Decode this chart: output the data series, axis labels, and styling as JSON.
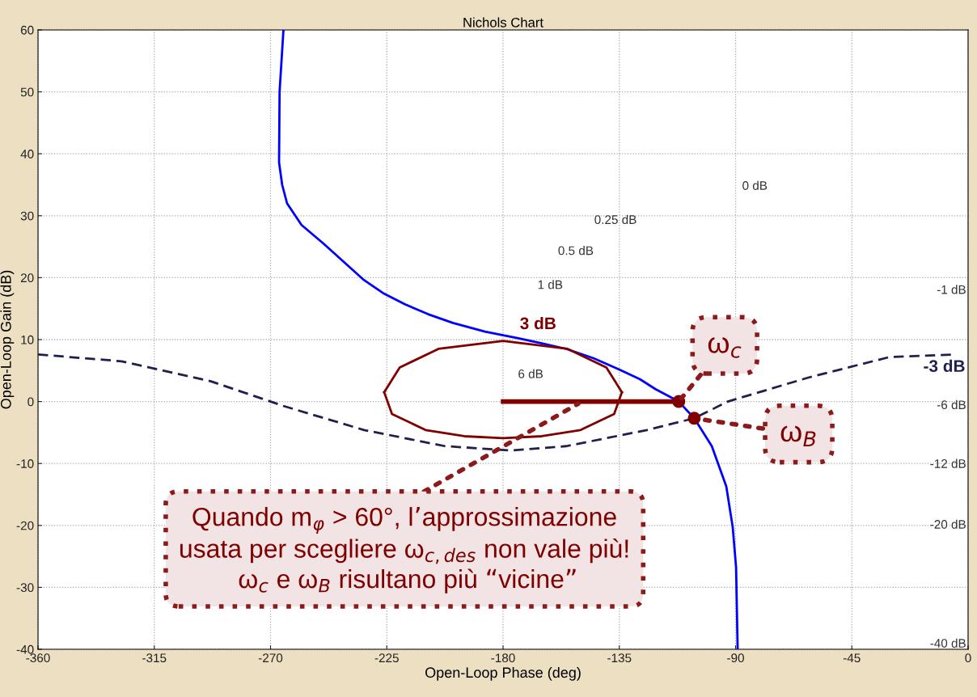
{
  "chart_data": {
    "type": "line",
    "title": "Nichols Chart",
    "xlabel": "Open-Loop Phase (deg)",
    "ylabel": "Open-Loop Gain (dB)",
    "xlim": [
      -360,
      0
    ],
    "xticks": [
      -360,
      -315,
      -270,
      -225,
      -180,
      -135,
      -90,
      -45,
      0
    ],
    "ylim": [
      -40,
      60
    ],
    "yticks": [
      -40,
      -30,
      -20,
      -10,
      0,
      10,
      20,
      30,
      40,
      50,
      60
    ],
    "grid": true,
    "series": [
      {
        "color": "#0000ff",
        "line_style": "solid",
        "x": [
          -265,
          -266.5,
          -266.7,
          -265.5,
          -263.6,
          -258,
          -249.5,
          -241,
          -233.8,
          -226,
          -218,
          -209,
          -199.4,
          -187,
          -174,
          -165,
          -155.5,
          -145,
          -135.2,
          -127,
          -121,
          -112,
          -106,
          -99.2,
          -93.6,
          -91.1,
          -89.8,
          -89.2
        ],
        "values": [
          60,
          50,
          38.6,
          35,
          32,
          28.5,
          25.5,
          22.3,
          19.6,
          17.4,
          15.7,
          14.1,
          12.7,
          11.3,
          10.2,
          9.4,
          8.5,
          7,
          5.2,
          3.6,
          2,
          0,
          -2.7,
          -7.2,
          -13.7,
          -20.3,
          -26.8,
          -40
        ]
      },
      {
        "color": "#202050",
        "line_style": "dashed",
        "x": [
          -360,
          -327.7,
          -293.3,
          -265.1,
          -233.8,
          -202.5,
          -176.8,
          -155.5,
          -124.3,
          -106,
          -93,
          -61.6,
          -30.3,
          -5.3
        ],
        "values": [
          7.6,
          6.5,
          3.3,
          -0.7,
          -4.6,
          -7.2,
          -7.9,
          -7.2,
          -4.6,
          -2.7,
          0,
          3.9,
          7.2,
          7.6
        ]
      },
      {
        "color": "#800000",
        "line_style": "solid",
        "x": [
          -226,
          -220,
          -205,
          -180,
          -155,
          -140,
          -134
        ],
        "values": [
          1.5,
          5.5,
          8.5,
          9.8,
          8.5,
          5.5,
          1.5
        ]
      },
      {
        "color": "#800000",
        "line_style": "solid",
        "x": [
          -226,
          -223,
          -210,
          -195,
          -180,
          -165,
          -150,
          -137,
          -134
        ],
        "values": [
          1.5,
          -2,
          -4.6,
          -5.6,
          -5.9,
          -5.6,
          -4.6,
          -2,
          1.5
        ]
      },
      {
        "color": "#800000",
        "line_style": "solid",
        "x": [
          -180,
          -112
        ],
        "values": [
          0,
          0
        ]
      },
      {
        "type": "scatter",
        "color": "#800000",
        "marker": "circle",
        "x": [
          -112,
          -106
        ],
        "values": [
          0,
          -2.7
        ]
      }
    ],
    "annotations": [
      "Quando m$_{φ}$ > 60°, l’approssimazione\nusata per scegliere ω$_{c,des}$ non vale più!\n ω$_{c}$ e ω$_{B}$ risultano più “vicine”",
      {
        "text": "ω$_{c}$",
        "x": -112,
        "y": 0
      },
      {
        "text": "ω$_{B}$",
        "x": -106,
        "y": -2.7
      },
      "3 dB",
      "-3 dB",
      "0 dB",
      "0.25 dB",
      "0.5 dB",
      "1 dB",
      "6 dB",
      "-1 dB",
      "-6 dB",
      "-12 dB",
      "-20 dB",
      "-40 dB"
    ]
  }
}
